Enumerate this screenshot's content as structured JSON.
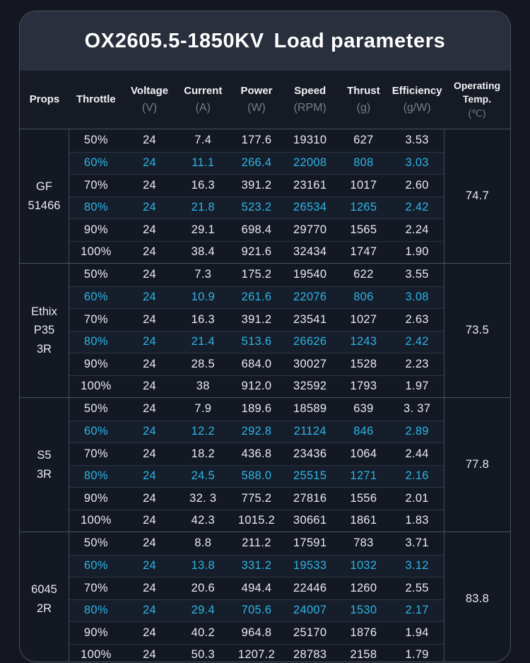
{
  "chart_data": {
    "type": "table",
    "title_model": "OX2605.5-1850KV",
    "title_suffix": "Load parameters",
    "columns": [
      {
        "label": "Props",
        "unit": ""
      },
      {
        "label": "Throttle",
        "unit": ""
      },
      {
        "label": "Voltage",
        "unit": "(V)"
      },
      {
        "label": "Current",
        "unit": "(A)"
      },
      {
        "label": "Power",
        "unit": "(W)"
      },
      {
        "label": "Speed",
        "unit": "(RPM)"
      },
      {
        "label": "Thrust",
        "unit": "(g)"
      },
      {
        "label": "Efficiency",
        "unit": "(g/W)"
      },
      {
        "label": "Operating Temp.",
        "unit": "(℃)"
      }
    ],
    "highlight_row_indexes": [
      1,
      3
    ],
    "groups": [
      {
        "props": [
          "GF",
          "51466"
        ],
        "operating_temp": "74.7",
        "rows": [
          [
            "50%",
            "24",
            "7.4",
            "177.6",
            "19310",
            "627",
            "3.53"
          ],
          [
            "60%",
            "24",
            "11.1",
            "266.4",
            "22008",
            "808",
            "3.03"
          ],
          [
            "70%",
            "24",
            "16.3",
            "391.2",
            "23161",
            "1017",
            "2.60"
          ],
          [
            "80%",
            "24",
            "21.8",
            "523.2",
            "26534",
            "1265",
            "2.42"
          ],
          [
            "90%",
            "24",
            "29.1",
            "698.4",
            "29770",
            "1565",
            "2.24"
          ],
          [
            "100%",
            "24",
            "38.4",
            "921.6",
            "32434",
            "1747",
            "1.90"
          ]
        ]
      },
      {
        "props": [
          "Ethix",
          "P35",
          "3R"
        ],
        "operating_temp": "73.5",
        "rows": [
          [
            "50%",
            "24",
            "7.3",
            "175.2",
            "19540",
            "622",
            "3.55"
          ],
          [
            "60%",
            "24",
            "10.9",
            "261.6",
            "22076",
            "806",
            "3.08"
          ],
          [
            "70%",
            "24",
            "16.3",
            "391.2",
            "23541",
            "1027",
            "2.63"
          ],
          [
            "80%",
            "24",
            "21.4",
            "513.6",
            "26626",
            "1243",
            "2.42"
          ],
          [
            "90%",
            "24",
            "28.5",
            "684.0",
            "30027",
            "1528",
            "2.23"
          ],
          [
            "100%",
            "24",
            "38",
            "912.0",
            "32592",
            "1793",
            "1.97"
          ]
        ]
      },
      {
        "props": [
          "S5",
          "3R"
        ],
        "operating_temp": "77.8",
        "rows": [
          [
            "50%",
            "24",
            "7.9",
            "189.6",
            "18589",
            "639",
            "3. 37"
          ],
          [
            "60%",
            "24",
            "12.2",
            "292.8",
            "21124",
            "846",
            "2.89"
          ],
          [
            "70%",
            "24",
            "18.2",
            "436.8",
            "23436",
            "1064",
            "2.44"
          ],
          [
            "80%",
            "24",
            "24.5",
            "588.0",
            "25515",
            "1271",
            "2.16"
          ],
          [
            "90%",
            "24",
            "32. 3",
            "775.2",
            "27816",
            "1556",
            "2.01"
          ],
          [
            "100%",
            "24",
            "42.3",
            "1015.2",
            "30661",
            "1861",
            "1.83"
          ]
        ]
      },
      {
        "props": [
          "6045",
          "2R"
        ],
        "operating_temp": "83.8",
        "rows": [
          [
            "50%",
            "24",
            "8.8",
            "211.2",
            "17591",
            "783",
            "3.71"
          ],
          [
            "60%",
            "24",
            "13.8",
            "331.2",
            "19533",
            "1032",
            "3.12"
          ],
          [
            "70%",
            "24",
            "20.6",
            "494.4",
            "22446",
            "1260",
            "2.55"
          ],
          [
            "80%",
            "24",
            "29.4",
            "705.6",
            "24007",
            "1530",
            "2.17"
          ],
          [
            "90%",
            "24",
            "40.2",
            "964.8",
            "25170",
            "1876",
            "1.94"
          ],
          [
            "100%",
            "24",
            "50.3",
            "1207.2",
            "28783",
            "2158",
            "1.79"
          ]
        ]
      }
    ],
    "colors": {
      "page_bg": "#14171f",
      "title_band_bg": "#2a2f3d",
      "table_bg": "#141822",
      "header_bg": "#161a25",
      "accent_cyan": "#2eb4e6",
      "text": "#e9ebef",
      "unit_text": "#767d89",
      "row_line": "#2e3542",
      "group_line": "#4a5160"
    }
  }
}
